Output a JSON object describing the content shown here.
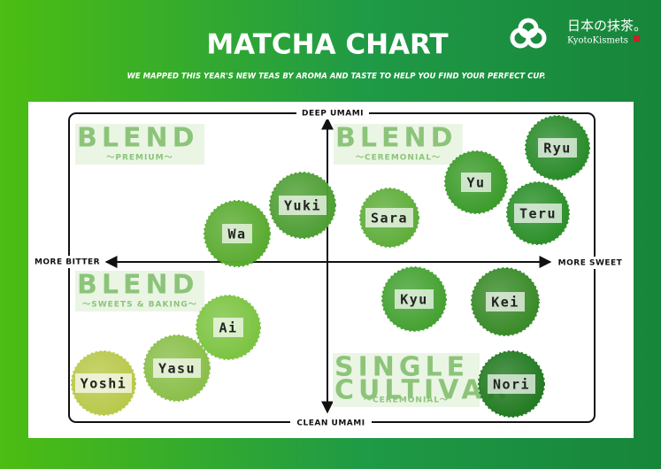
{
  "header": {
    "title": "MATCHA CHART",
    "subtitle": "WE MAPPED THIS YEAR'S NEW TEAS BY AROMA AND TASTE TO HELP YOU FIND YOUR PERFECT CUP."
  },
  "logo": {
    "japanese": "日本の抹茶。",
    "brand": "KyotoKismets"
  },
  "axes": {
    "top": "DEEP UMAMI",
    "bottom": "CLEAN UMAMI",
    "left": "MORE BITTER",
    "right": "MORE SWEET"
  },
  "quadrants": [
    {
      "title_lines": [
        "BLEND"
      ],
      "subtitle": "～PREMIUM～"
    },
    {
      "title_lines": [
        "BLEND"
      ],
      "subtitle": "～CEREMONIAL～"
    },
    {
      "title_lines": [
        "BLEND"
      ],
      "subtitle": "～SWEETS & BAKING～"
    },
    {
      "title_lines": [
        "SINGLE",
        "CULTIVAR"
      ],
      "subtitle": "～CEREMONIAL～"
    }
  ],
  "teas": [
    {
      "name": "Ryu"
    },
    {
      "name": "Yu"
    },
    {
      "name": "Teru"
    },
    {
      "name": "Sara"
    },
    {
      "name": "Yuki"
    },
    {
      "name": "Wa"
    },
    {
      "name": "Kyu"
    },
    {
      "name": "Kei"
    },
    {
      "name": "Ai"
    },
    {
      "name": "Yasu"
    },
    {
      "name": "Yoshi"
    },
    {
      "name": "Nori"
    }
  ]
}
